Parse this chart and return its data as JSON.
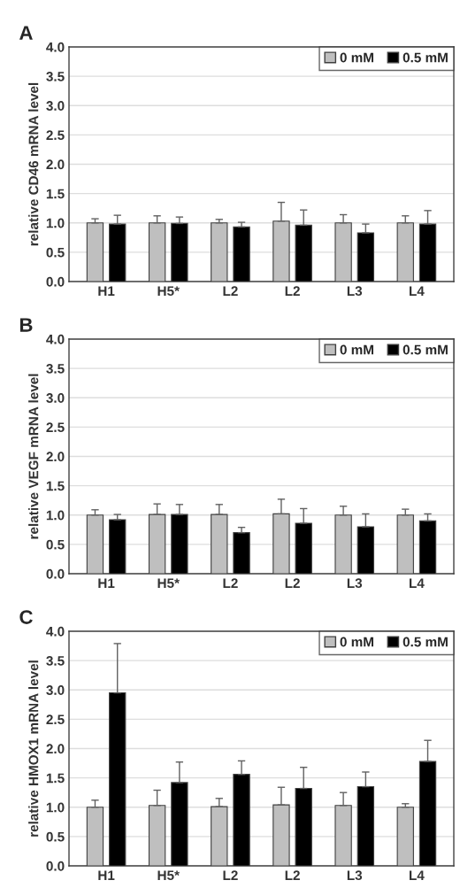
{
  "chart_data": [
    {
      "type": "bar",
      "title": "A",
      "ylabel": "relative CD46 mRNA level",
      "categories": [
        "H1",
        "H5*",
        "L2",
        "L2",
        "L3",
        "L4"
      ],
      "ylim": [
        0,
        4
      ],
      "yticks": [
        {
          "value": 0,
          "label": "0.0"
        },
        {
          "value": 0.5,
          "label": "0.5"
        },
        {
          "value": 1,
          "label": "1.0"
        },
        {
          "value": 1.5,
          "label": "1.5"
        },
        {
          "value": 2,
          "label": "2.0"
        },
        {
          "value": 2.5,
          "label": "2.5"
        },
        {
          "value": 3,
          "label": "3.0"
        },
        {
          "value": 3.5,
          "label": "3.5"
        },
        {
          "value": 4,
          "label": "4.0"
        }
      ],
      "grid": "y",
      "legend": "top right",
      "series": [
        {
          "name": "0 mM",
          "color": "#bfbfbf",
          "values": [
            1.0,
            1.0,
            1.0,
            1.03,
            1.0,
            1.0
          ],
          "errors": [
            [
              1.0,
              1.07
            ],
            [
              1.0,
              1.12
            ],
            [
              1.0,
              1.06
            ],
            [
              1.03,
              1.35
            ],
            [
              1.0,
              1.14
            ],
            [
              1.0,
              1.12
            ]
          ]
        },
        {
          "name": "0.5 mM",
          "color": "#000000",
          "values": [
            0.98,
            0.99,
            0.93,
            0.96,
            0.83,
            0.98
          ],
          "errors": [
            [
              0.98,
              1.13
            ],
            [
              0.99,
              1.1
            ],
            [
              0.93,
              1.01
            ],
            [
              0.96,
              1.22
            ],
            [
              0.83,
              0.98
            ],
            [
              0.98,
              1.21
            ]
          ]
        }
      ]
    },
    {
      "type": "bar",
      "title": "B",
      "ylabel": "relative VEGF mRNA level",
      "categories": [
        "H1",
        "H5*",
        "L2",
        "L2",
        "L3",
        "L4"
      ],
      "ylim": [
        0,
        4
      ],
      "yticks": [
        {
          "value": 0,
          "label": "0.0"
        },
        {
          "value": 0.5,
          "label": "0.5"
        },
        {
          "value": 1,
          "label": "1.0"
        },
        {
          "value": 1.5,
          "label": "1.5"
        },
        {
          "value": 2,
          "label": "2.0"
        },
        {
          "value": 2.5,
          "label": "2.5"
        },
        {
          "value": 3,
          "label": "3.0"
        },
        {
          "value": 3.5,
          "label": "3.5"
        },
        {
          "value": 4,
          "label": "4.0"
        }
      ],
      "grid": "y",
      "legend": "top right",
      "series": [
        {
          "name": "0 mM",
          "color": "#bfbfbf",
          "values": [
            1.0,
            1.01,
            1.01,
            1.02,
            1.0,
            1.0
          ],
          "errors": [
            [
              1.0,
              1.09
            ],
            [
              1.01,
              1.19
            ],
            [
              1.01,
              1.18
            ],
            [
              1.02,
              1.27
            ],
            [
              1.0,
              1.15
            ],
            [
              1.0,
              1.1
            ]
          ]
        },
        {
          "name": "0.5 mM",
          "color": "#000000",
          "values": [
            0.92,
            1.01,
            0.7,
            0.86,
            0.8,
            0.9
          ],
          "errors": [
            [
              0.92,
              1.01
            ],
            [
              1.01,
              1.18
            ],
            [
              0.7,
              0.79
            ],
            [
              0.86,
              1.11
            ],
            [
              0.8,
              1.02
            ],
            [
              0.9,
              1.02
            ]
          ]
        }
      ]
    },
    {
      "type": "bar",
      "title": "C",
      "ylabel": "relative HMOX1 mRNA level",
      "categories": [
        "H1",
        "H5*",
        "L2",
        "L2",
        "L3",
        "L4"
      ],
      "ylim": [
        0,
        4
      ],
      "yticks": [
        {
          "value": 0,
          "label": "0.0"
        },
        {
          "value": 0.5,
          "label": "0.5"
        },
        {
          "value": 1,
          "label": "1.0"
        },
        {
          "value": 1.5,
          "label": "1.5"
        },
        {
          "value": 2,
          "label": "2.0"
        },
        {
          "value": 2.5,
          "label": "2.5"
        },
        {
          "value": 3,
          "label": "3.0"
        },
        {
          "value": 3.5,
          "label": "3.5"
        },
        {
          "value": 4,
          "label": "4.0"
        }
      ],
      "grid": "y",
      "legend": "top right",
      "series": [
        {
          "name": "0 mM",
          "color": "#bfbfbf",
          "values": [
            1.0,
            1.03,
            1.01,
            1.04,
            1.03,
            1.0
          ],
          "errors": [
            [
              1.0,
              1.12
            ],
            [
              1.03,
              1.29
            ],
            [
              1.01,
              1.15
            ],
            [
              1.04,
              1.34
            ],
            [
              1.03,
              1.25
            ],
            [
              1.0,
              1.06
            ]
          ]
        },
        {
          "name": "0.5 mM",
          "color": "#000000",
          "values": [
            2.95,
            1.42,
            1.56,
            1.32,
            1.35,
            1.78
          ],
          "errors": [
            [
              2.95,
              3.79
            ],
            [
              1.42,
              1.77
            ],
            [
              1.56,
              1.79
            ],
            [
              1.32,
              1.68
            ],
            [
              1.35,
              1.6
            ],
            [
              1.78,
              2.14
            ]
          ]
        }
      ]
    }
  ]
}
